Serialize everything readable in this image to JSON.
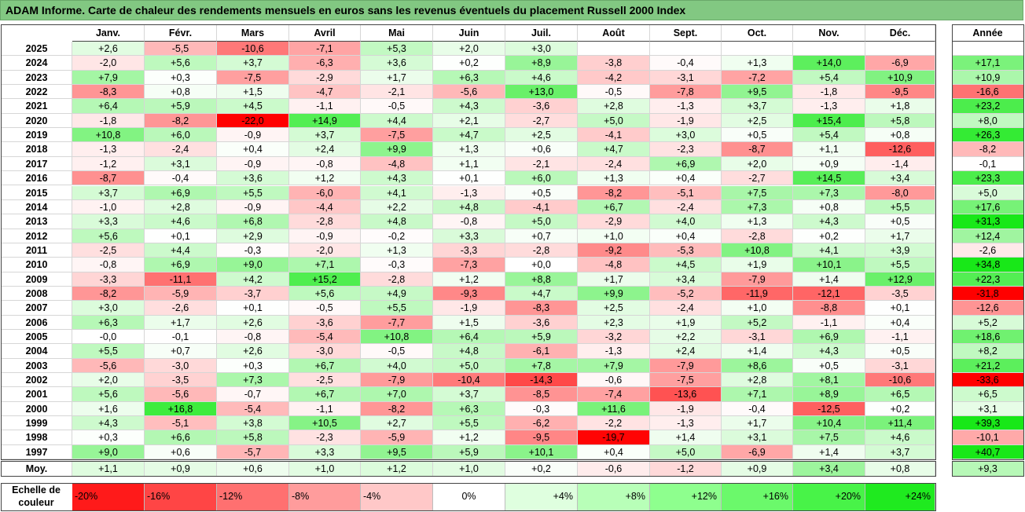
{
  "chart_data": {
    "type": "heatmap",
    "title": "ADAM Informe. Carte de chaleur des rendements mensuels en euros sans les revenus éventuels du placement Russell 2000 Index",
    "months": [
      "Janv.",
      "Févr.",
      "Mars",
      "Avril",
      "Mai",
      "Juin",
      "Juil.",
      "Août",
      "Sept.",
      "Oct.",
      "Nov.",
      "Déc."
    ],
    "year_header": "Année",
    "rows": [
      {
        "year": "2025",
        "values": [
          "+2,6",
          "-5,5",
          "-10,6",
          "-7,1",
          "+5,3",
          "+2,0",
          "+3,0",
          "",
          "",
          "",
          "",
          ""
        ],
        "annual": ""
      },
      {
        "year": "2024",
        "values": [
          "-2,0",
          "+5,6",
          "+3,7",
          "-6,3",
          "+3,6",
          "+0,2",
          "+8,9",
          "-3,8",
          "-0,4",
          "+1,3",
          "+14,0",
          "-6,9"
        ],
        "annual": "+17,1"
      },
      {
        "year": "2023",
        "values": [
          "+7,9",
          "+0,3",
          "-7,5",
          "-2,9",
          "+1,7",
          "+6,3",
          "+4,6",
          "-4,2",
          "-3,1",
          "-7,2",
          "+5,4",
          "+10,9"
        ],
        "annual": "+10,9"
      },
      {
        "year": "2022",
        "values": [
          "-8,3",
          "+0,8",
          "+1,5",
          "-4,7",
          "-2,1",
          "-5,6",
          "+13,0",
          "-0,5",
          "-7,8",
          "+9,5",
          "-1,8",
          "-9,5"
        ],
        "annual": "-16,6"
      },
      {
        "year": "2021",
        "values": [
          "+6,4",
          "+5,9",
          "+4,5",
          "-1,1",
          "-0,5",
          "+4,3",
          "-3,6",
          "+2,8",
          "-1,3",
          "+3,7",
          "-1,3",
          "+1,8"
        ],
        "annual": "+23,2"
      },
      {
        "year": "2020",
        "values": [
          "-1,8",
          "-8,2",
          "-22,0",
          "+14,9",
          "+4,4",
          "+2,1",
          "-2,7",
          "+5,0",
          "-1,9",
          "+2,5",
          "+15,4",
          "+5,8"
        ],
        "annual": "+8,0"
      },
      {
        "year": "2019",
        "values": [
          "+10,8",
          "+6,0",
          "-0,9",
          "+3,7",
          "-7,5",
          "+4,7",
          "+2,5",
          "-4,1",
          "+3,0",
          "+0,5",
          "+5,4",
          "+0,8"
        ],
        "annual": "+26,3"
      },
      {
        "year": "2018",
        "values": [
          "-1,3",
          "-2,4",
          "+0,4",
          "+2,4",
          "+9,9",
          "+1,3",
          "+0,6",
          "+4,7",
          "-2,3",
          "-8,7",
          "+1,1",
          "-12,6"
        ],
        "annual": "-8,2"
      },
      {
        "year": "2017",
        "values": [
          "-1,2",
          "+3,1",
          "-0,9",
          "-0,8",
          "-4,8",
          "+1,1",
          "-2,1",
          "-2,4",
          "+6,9",
          "+2,0",
          "+0,9",
          "-1,4"
        ],
        "annual": "-0,1"
      },
      {
        "year": "2016",
        "values": [
          "-8,7",
          "-0,4",
          "+3,6",
          "+1,2",
          "+4,3",
          "+0,1",
          "+6,0",
          "+1,3",
          "+0,4",
          "-2,7",
          "+14,5",
          "+3,4"
        ],
        "annual": "+23,3"
      },
      {
        "year": "2015",
        "values": [
          "+3,7",
          "+6,9",
          "+5,5",
          "-6,0",
          "+4,1",
          "-1,3",
          "+0,5",
          "-8,2",
          "-5,1",
          "+7,5",
          "+7,3",
          "-8,0"
        ],
        "annual": "+5,0"
      },
      {
        "year": "2014",
        "values": [
          "-1,0",
          "+2,8",
          "-0,9",
          "-4,4",
          "+2,2",
          "+4,8",
          "-4,1",
          "+6,7",
          "-2,4",
          "+7,3",
          "+0,8",
          "+5,5"
        ],
        "annual": "+17,6"
      },
      {
        "year": "2013",
        "values": [
          "+3,3",
          "+4,6",
          "+6,8",
          "-2,8",
          "+4,8",
          "-0,8",
          "+5,0",
          "-2,9",
          "+4,0",
          "+1,3",
          "+4,3",
          "+0,5"
        ],
        "annual": "+31,3"
      },
      {
        "year": "2012",
        "values": [
          "+5,6",
          "+0,1",
          "+2,9",
          "-0,9",
          "-0,2",
          "+3,3",
          "+0,7",
          "+1,0",
          "+0,4",
          "-2,8",
          "+0,2",
          "+1,7"
        ],
        "annual": "+12,4"
      },
      {
        "year": "2011",
        "values": [
          "-2,5",
          "+4,4",
          "-0,3",
          "-2,0",
          "+1,3",
          "-3,3",
          "-2,8",
          "-9,2",
          "-5,3",
          "+10,8",
          "+4,1",
          "+3,9"
        ],
        "annual": "-2,6"
      },
      {
        "year": "2010",
        "values": [
          "-0,8",
          "+6,9",
          "+9,0",
          "+7,1",
          "-0,3",
          "-7,3",
          "+0,0",
          "-4,8",
          "+4,5",
          "+1,9",
          "+10,1",
          "+5,5"
        ],
        "annual": "+34,8"
      },
      {
        "year": "2009",
        "values": [
          "-3,3",
          "-11,1",
          "+4,2",
          "+15,2",
          "-2,8",
          "+1,2",
          "+8,8",
          "+1,7",
          "+3,4",
          "-7,9",
          "+1,4",
          "+12,9"
        ],
        "annual": "+22,3"
      },
      {
        "year": "2008",
        "values": [
          "-8,2",
          "-5,9",
          "-3,7",
          "+5,6",
          "+4,9",
          "-9,3",
          "+4,7",
          "+9,9",
          "-5,2",
          "-11,9",
          "-12,1",
          "-3,5"
        ],
        "annual": "-31,8"
      },
      {
        "year": "2007",
        "values": [
          "+3,0",
          "-2,6",
          "+0,1",
          "-0,5",
          "+5,5",
          "-1,9",
          "-8,3",
          "+2,5",
          "-2,4",
          "+1,0",
          "-8,8",
          "+0,1"
        ],
        "annual": "-12,6"
      },
      {
        "year": "2006",
        "values": [
          "+6,3",
          "+1,7",
          "+2,6",
          "-3,6",
          "-7,7",
          "+1,5",
          "-3,6",
          "+2,3",
          "+1,9",
          "+5,2",
          "-1,1",
          "+0,4"
        ],
        "annual": "+5,2"
      },
      {
        "year": "2005",
        "values": [
          "-0,0",
          "-0,1",
          "-0,8",
          "-5,4",
          "+10,8",
          "+6,4",
          "+5,9",
          "-3,2",
          "+2,2",
          "-3,1",
          "+6,9",
          "-1,1"
        ],
        "annual": "+18,6"
      },
      {
        "year": "2004",
        "values": [
          "+5,5",
          "+0,7",
          "+2,6",
          "-3,0",
          "-0,5",
          "+4,8",
          "-6,1",
          "-1,3",
          "+2,4",
          "+1,4",
          "+4,3",
          "+0,5"
        ],
        "annual": "+8,2"
      },
      {
        "year": "2003",
        "values": [
          "-5,6",
          "-3,0",
          "+0,3",
          "+6,7",
          "+4,0",
          "+5,0",
          "+7,8",
          "+7,9",
          "-7,9",
          "+8,6",
          "+0,5",
          "-3,1"
        ],
        "annual": "+21,2"
      },
      {
        "year": "2002",
        "values": [
          "+2,0",
          "-3,5",
          "+7,3",
          "-2,5",
          "-7,9",
          "-10,4",
          "-14,3",
          "-0,6",
          "-7,5",
          "+2,8",
          "+8,1",
          "-10,6"
        ],
        "annual": "-33,6"
      },
      {
        "year": "2001",
        "values": [
          "+5,6",
          "-5,6",
          "-0,7",
          "+6,7",
          "+7,0",
          "+3,7",
          "-8,5",
          "-7,4",
          "-13,6",
          "+7,1",
          "+8,9",
          "+6,5"
        ],
        "annual": "+6,5"
      },
      {
        "year": "2000",
        "values": [
          "+1,6",
          "+16,8",
          "-5,4",
          "-1,1",
          "-8,2",
          "+6,3",
          "-0,3",
          "+11,6",
          "-1,9",
          "-0,4",
          "-12,5",
          "+0,2"
        ],
        "annual": "+3,1"
      },
      {
        "year": "1999",
        "values": [
          "+4,3",
          "-5,1",
          "+3,8",
          "+10,5",
          "+2,7",
          "+5,5",
          "-6,2",
          "-2,2",
          "-1,3",
          "+1,7",
          "+10,4",
          "+11,4"
        ],
        "annual": "+39,3"
      },
      {
        "year": "1998",
        "values": [
          "+0,3",
          "+6,6",
          "+5,8",
          "-2,3",
          "-5,9",
          "+1,2",
          "-9,5",
          "-19,7",
          "+1,4",
          "+3,1",
          "+7,5",
          "+4,6"
        ],
        "annual": "-10,1"
      },
      {
        "year": "1997",
        "values": [
          "+9,0",
          "+0,6",
          "-5,7",
          "+3,3",
          "+9,5",
          "+5,9",
          "+10,1",
          "+0,4",
          "+5,0",
          "-6,9",
          "+1,4",
          "+3,7"
        ],
        "annual": "+40,7"
      }
    ],
    "average": {
      "label": "Moy.",
      "values": [
        "+1,1",
        "+0,9",
        "+0,6",
        "+1,0",
        "+1,2",
        "+1,0",
        "+0,2",
        "-0,6",
        "-1,2",
        "+0,9",
        "+3,4",
        "+0,8"
      ],
      "annual": "+9,3"
    },
    "color_scale": {
      "label_line1": "Echelle de",
      "label_line2": "couleur",
      "stops": [
        {
          "label": "-20%",
          "value": -20,
          "color": "#ff1a1a"
        },
        {
          "label": "-16%",
          "value": -16,
          "color": "#ff4545"
        },
        {
          "label": "-12%",
          "value": -12,
          "color": "#ff7070"
        },
        {
          "label": "-8%",
          "value": -8,
          "color": "#ff9c9c"
        },
        {
          "label": "-4%",
          "value": -4,
          "color": "#ffc8c8"
        },
        {
          "label": "0%",
          "value": 0,
          "color": "#ffffff"
        },
        {
          "label": "+4%",
          "value": 4,
          "color": "#dfffdf"
        },
        {
          "label": "+8%",
          "value": 8,
          "color": "#b8ffb8"
        },
        {
          "label": "+12%",
          "value": 12,
          "color": "#8eff8e"
        },
        {
          "label": "+16%",
          "value": 16,
          "color": "#6bf96b"
        },
        {
          "label": "+20%",
          "value": 20,
          "color": "#48f348"
        },
        {
          "label": "+24%",
          "value": 24,
          "color": "#1fea1f"
        }
      ]
    },
    "colors": {
      "negative_max": "#ff0000",
      "positive_max": "#1fe81f",
      "neutral": "#ffffff",
      "title_bar": "#82c882"
    }
  }
}
